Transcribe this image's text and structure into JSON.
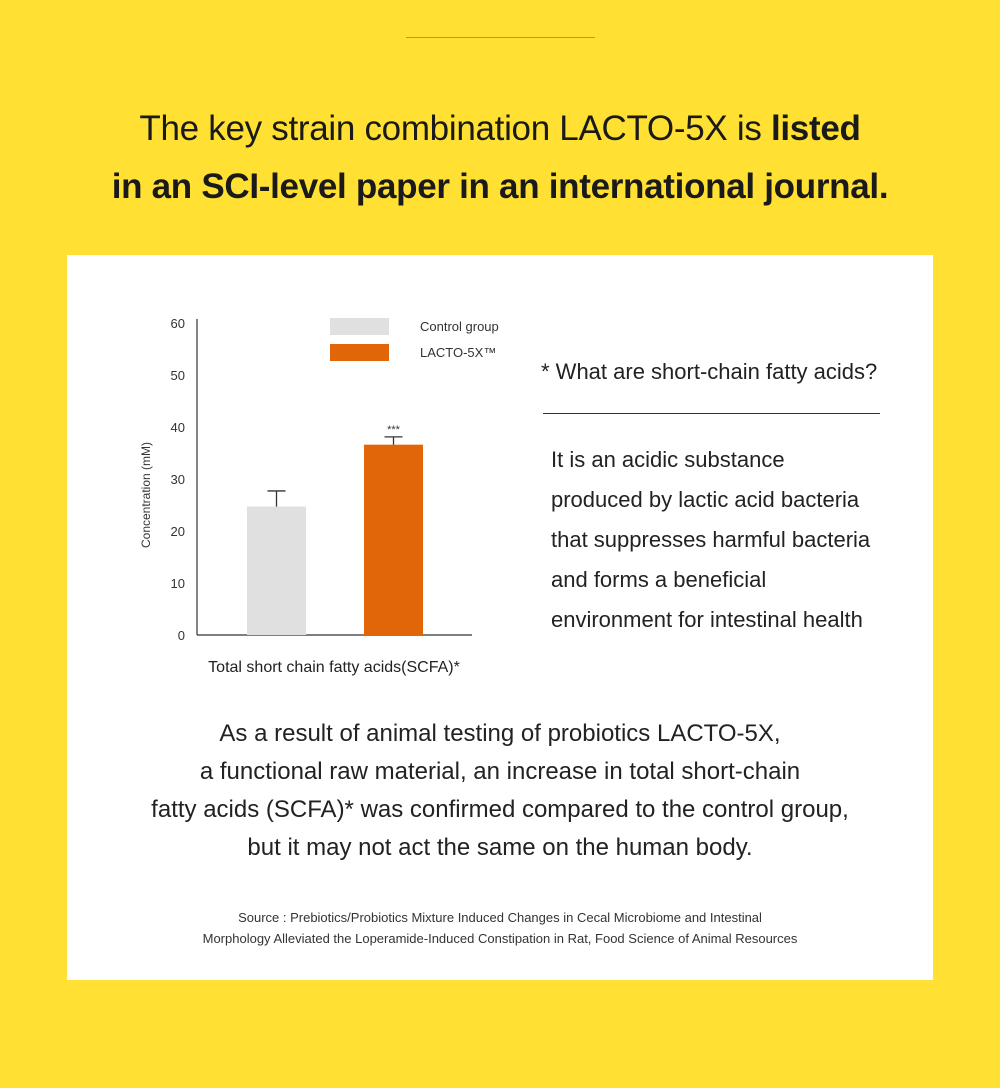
{
  "header": {
    "line1_regular": "The key strain combination LACTO-5X is ",
    "line1_bold": "listed",
    "line2_bold": "in an SCI-level paper in an international journal."
  },
  "chart_data": {
    "type": "bar",
    "categories": [
      "Control group",
      "LACTO-5X™"
    ],
    "values": [
      24.7,
      36.6
    ],
    "error_bars": [
      3.0,
      1.5
    ],
    "significance": [
      "",
      "***"
    ],
    "colors": [
      "#E0E0E0",
      "#E06608"
    ],
    "legend": [
      "Control group",
      "LACTO-5X™"
    ],
    "legend_position": "top-right",
    "xlabel": "Total short chain fatty acids(SCFA)*",
    "ylabel": "Concentration (mM)",
    "ylim": [
      0,
      60
    ],
    "yticks": [
      "0",
      "10",
      "20",
      "30",
      "40",
      "50",
      "60"
    ],
    "grid": false
  },
  "info": {
    "question": "* What are short-chain fatty acids?",
    "answer_lines": [
      "It is an acidic substance",
      "produced by lactic acid bacteria",
      "that suppresses harmful bacteria",
      "and forms a beneficial",
      "environment for intestinal health"
    ]
  },
  "result_lines": [
    "As a result of animal testing of probiotics LACTO-5X,",
    "a functional raw material, an increase in total short-chain",
    "fatty acids (SCFA)* was confirmed compared to the control group,",
    "but it may not act the same on the human body."
  ],
  "source_lines": [
    "Source : Prebiotics/Probiotics Mixture Induced Changes in Cecal Microbiome and Intestinal",
    "Morphology Alleviated the Loperamide-Induced Constipation in Rat, Food Science of Animal Resources"
  ]
}
